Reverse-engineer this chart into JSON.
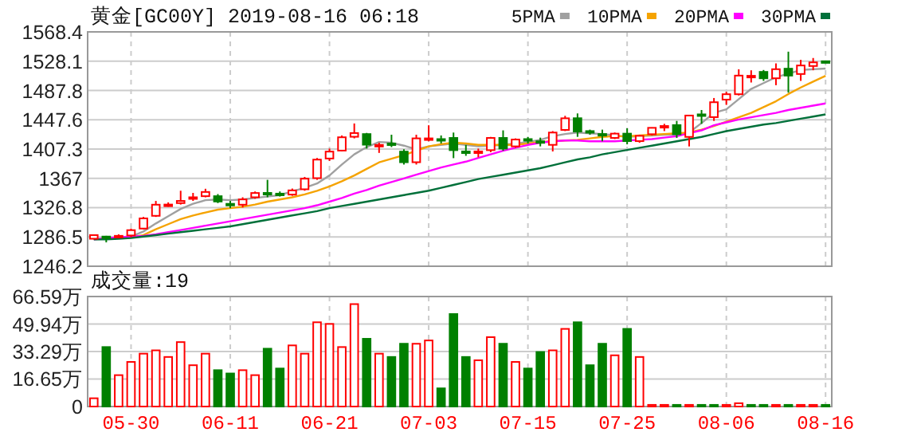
{
  "chart_data": [
    {
      "type": "candlestick",
      "title": "黄金[GC00Y] 2019-08-16 06:18",
      "categories": [
        null,
        null,
        null,
        null,
        null,
        null,
        null,
        null,
        null,
        null,
        null,
        null,
        null,
        null,
        null,
        null,
        null,
        null,
        null,
        null,
        null,
        null,
        null,
        null,
        null,
        null,
        null,
        null,
        null,
        null,
        null,
        null,
        null,
        null,
        null,
        null,
        null,
        null,
        null,
        null,
        null,
        null,
        null,
        null,
        null,
        null,
        null,
        null,
        null,
        null,
        null,
        null,
        null,
        null,
        null,
        null,
        null,
        null,
        null,
        null
      ],
      "ohlc": [
        [
          1284,
          1290,
          1283,
          1289
        ],
        [
          1287,
          1288,
          1279,
          1286
        ],
        [
          1286,
          1290,
          1285,
          1288
        ],
        [
          1288.5,
          1298,
          1286,
          1295.8
        ],
        [
          1298,
          1314,
          1297,
          1312
        ],
        [
          1315.5,
          1336,
          1314,
          1330.8
        ],
        [
          1329,
          1334,
          1328,
          1331
        ],
        [
          1333,
          1350,
          1331,
          1336
        ],
        [
          1339,
          1347,
          1336,
          1341
        ],
        [
          1342.5,
          1352.7,
          1341,
          1348.3
        ],
        [
          1342.5,
          1345.4,
          1333,
          1335.2
        ],
        [
          1332,
          1336,
          1326,
          1331
        ],
        [
          1330.8,
          1341,
          1327,
          1338.1
        ],
        [
          1341,
          1349,
          1339,
          1346.9
        ],
        [
          1347,
          1365,
          1341,
          1346
        ],
        [
          1346,
          1349,
          1342,
          1345
        ],
        [
          1344.7,
          1353,
          1343,
          1350.5
        ],
        [
          1352,
          1369,
          1350,
          1366.6
        ],
        [
          1367.3,
          1395,
          1365,
          1392.8
        ],
        [
          1394.3,
          1408,
          1391,
          1403.8
        ],
        [
          1405.2,
          1426,
          1404,
          1423.5
        ],
        [
          1424.2,
          1442.5,
          1422,
          1429.3
        ],
        [
          1427.9,
          1429.5,
          1408,
          1413.3
        ],
        [
          1411,
          1416,
          1402,
          1413
        ],
        [
          1415,
          1427,
          1410,
          1413
        ],
        [
          1403.8,
          1407,
          1386,
          1389.2
        ],
        [
          1389.2,
          1427,
          1386,
          1422
        ],
        [
          1421,
          1440,
          1418,
          1422
        ],
        [
          1421,
          1426,
          1415,
          1420
        ],
        [
          1422.6,
          1430,
          1394.8,
          1405.8
        ],
        [
          1404,
          1413,
          1398,
          1403
        ],
        [
          1402,
          1408,
          1396,
          1404
        ],
        [
          1405.8,
          1424,
          1403,
          1422.6
        ],
        [
          1422.6,
          1433,
          1405,
          1408
        ],
        [
          1411,
          1422,
          1409,
          1420.4
        ],
        [
          1421,
          1424,
          1415,
          1420
        ],
        [
          1418,
          1423,
          1411,
          1417
        ],
        [
          1413.1,
          1432,
          1404,
          1430
        ],
        [
          1433.6,
          1453,
          1432,
          1449.6
        ],
        [
          1449.7,
          1456.3,
          1424.1,
          1431.4
        ],
        [
          1432,
          1434,
          1427,
          1431
        ],
        [
          1428,
          1434,
          1418,
          1427
        ],
        [
          1422.6,
          1430,
          1421,
          1428.5
        ],
        [
          1428.5,
          1435.8,
          1413.8,
          1418.2
        ],
        [
          1418.2,
          1427,
          1416,
          1425.5
        ],
        [
          1427.7,
          1437,
          1426,
          1436.5
        ],
        [
          1437,
          1442,
          1432,
          1439
        ],
        [
          1440.2,
          1446,
          1422.6,
          1427.7
        ],
        [
          1424,
          1454,
          1410.9,
          1453.4
        ],
        [
          1455,
          1461,
          1442,
          1454
        ],
        [
          1451.2,
          1477.5,
          1446,
          1471.7
        ],
        [
          1475.3,
          1486,
          1468,
          1482.7
        ],
        [
          1482.7,
          1517,
          1481,
          1508.3
        ],
        [
          1506,
          1515.6,
          1498.8,
          1508
        ],
        [
          1513.4,
          1516,
          1501,
          1504.6
        ],
        [
          1504.6,
          1525.1,
          1495.1,
          1517.1
        ],
        [
          1517.8,
          1541.2,
          1484.9,
          1508.3
        ],
        [
          1510.5,
          1530,
          1501,
          1522.2
        ],
        [
          1521.5,
          1532.5,
          1515.6,
          1526.5
        ],
        [
          1528,
          1529,
          1526,
          1527
        ]
      ],
      "colors": [
        "#ff0000",
        "#008000",
        "#ff0000",
        "#ff0000",
        "#ff0000",
        "#ff0000",
        "#ff0000",
        "#ff0000",
        "#ff0000",
        "#ff0000",
        "#008000",
        "#008000",
        "#ff0000",
        "#ff0000",
        "#008000",
        "#008000",
        "#ff0000",
        "#ff0000",
        "#ff0000",
        "#ff0000",
        "#ff0000",
        "#ff0000",
        "#008000",
        "#ff0000",
        "#008000",
        "#008000",
        "#ff0000",
        "#ff0000",
        "#008000",
        "#008000",
        "#008000",
        "#ff0000",
        "#ff0000",
        "#008000",
        "#ff0000",
        "#008000",
        "#008000",
        "#ff0000",
        "#ff0000",
        "#008000",
        "#008000",
        "#008000",
        "#ff0000",
        "#008000",
        "#ff0000",
        "#ff0000",
        "#ff0000",
        "#008000",
        "#ff0000",
        "#008000",
        "#ff0000",
        "#ff0000",
        "#ff0000",
        "#ff0000",
        "#008000",
        "#ff0000",
        "#008000",
        "#ff0000",
        "#ff0000",
        "#008000"
      ],
      "series": [
        {
          "type": "line",
          "name": "5PMA",
          "color": "#a0a0a0",
          "values": [
            1283,
            1284,
            1286,
            1287,
            1294,
            1305,
            1315,
            1325,
            1332,
            1337,
            1338,
            1337,
            1338,
            1340,
            1342,
            1344,
            1349,
            1354,
            1360,
            1371,
            1386,
            1400,
            1410,
            1417,
            1416,
            1412,
            1407,
            1411,
            1413,
            1415,
            1413,
            1411,
            1412,
            1413,
            1415,
            1417,
            1420,
            1425,
            1428,
            1430,
            1429,
            1428,
            1426,
            1424,
            1425,
            1426,
            1427,
            1427,
            1430,
            1443,
            1457,
            1462,
            1476,
            1490,
            1498,
            1506,
            1511,
            1516,
            1517,
            1518
          ]
        },
        {
          "type": "line",
          "name": "10PMA",
          "color": "#f5a300",
          "values": [
            null,
            null,
            1285,
            1286,
            1289,
            1297,
            1304,
            1311,
            1316,
            1320,
            1324,
            1326,
            1328,
            1331,
            1335,
            1338,
            1341,
            1345,
            1350,
            1356,
            1363,
            1371,
            1380,
            1389,
            1394,
            1399,
            1405,
            1411,
            1414,
            1416,
            1415,
            1413,
            1413,
            1413,
            1413,
            1415,
            1417,
            1418,
            1419,
            1420,
            1422,
            1424,
            1425,
            1425,
            1426,
            1427,
            1428,
            1429,
            1430,
            1434,
            1439,
            1445,
            1451,
            1457,
            1465,
            1473,
            1483,
            1492,
            1500,
            1508
          ]
        },
        {
          "type": "line",
          "name": "20PMA",
          "color": "#ff00ff",
          "values": [
            1283,
            1285,
            1286,
            1287,
            1288,
            1290,
            1293,
            1296,
            1299,
            1302,
            1305,
            1308,
            1311,
            1314,
            1317,
            1320,
            1323,
            1326,
            1330,
            1335,
            1340,
            1346,
            1351,
            1357,
            1362,
            1367,
            1372,
            1377,
            1382,
            1386,
            1390,
            1395,
            1400,
            1405,
            1409,
            1413,
            1416,
            1418,
            1419,
            1419,
            1418,
            1418,
            1418,
            1419,
            1420,
            1421,
            1423,
            1425,
            1429,
            1433,
            1440,
            1444,
            1448,
            1451,
            1454,
            1457,
            1461,
            1464,
            1467,
            1470
          ]
        },
        {
          "type": "line",
          "name": "30PMA",
          "color": "#00703a",
          "values": [
            1283,
            1283,
            1284,
            1285,
            1287,
            1289,
            1291,
            1293,
            1295,
            1297,
            1299,
            1301,
            1304,
            1307,
            1310,
            1313,
            1316,
            1319,
            1322,
            1326,
            1329,
            1332,
            1335,
            1338,
            1341,
            1344,
            1347,
            1350,
            1354,
            1358,
            1362,
            1366,
            1369,
            1372,
            1375,
            1378,
            1381,
            1385,
            1389,
            1393,
            1396,
            1400,
            1403,
            1406,
            1409,
            1412,
            1415,
            1418,
            1421,
            1424,
            1428,
            1432,
            1435,
            1438,
            1441,
            1443,
            1446,
            1449,
            1452,
            1455
          ]
        }
      ],
      "ylim": [
        1246.2,
        1568.4
      ],
      "yticks": [
        1246.2,
        1286.5,
        1326.8,
        1367.0,
        1407.3,
        1447.6,
        1487.8,
        1528.1,
        1568.4
      ],
      "grid": true,
      "legend": "top right",
      "tick_labels": "y"
    },
    {
      "type": "bar",
      "title": "成交量:19",
      "categories": [
        null,
        null,
        null,
        "05-30",
        null,
        null,
        null,
        null,
        null,
        null,
        null,
        "06-11",
        null,
        null,
        null,
        null,
        null,
        null,
        null,
        "06-21",
        null,
        null,
        null,
        null,
        null,
        null,
        null,
        "07-03",
        null,
        null,
        null,
        null,
        null,
        null,
        null,
        "07-15",
        null,
        null,
        null,
        null,
        null,
        null,
        null,
        "07-25",
        null,
        null,
        null,
        null,
        null,
        null,
        null,
        "08-06",
        null,
        null,
        null,
        null,
        null,
        null,
        null,
        "08-16"
      ],
      "values": [
        5,
        36,
        19,
        27,
        32,
        34,
        30,
        39,
        25,
        32,
        22,
        20,
        22,
        19,
        35,
        23,
        37,
        32,
        51,
        50,
        36,
        62,
        41,
        32,
        30,
        38,
        38,
        40,
        11,
        56,
        30,
        28,
        42,
        38,
        27,
        23,
        33,
        34,
        47,
        51,
        25,
        38,
        31,
        47,
        30,
        1,
        1,
        1,
        1,
        1,
        1,
        1,
        2,
        1,
        1,
        1,
        1,
        1,
        1,
        1
      ],
      "colors": [
        "#ff0000",
        "#008000",
        "#ff0000",
        "#ff0000",
        "#ff0000",
        "#ff0000",
        "#ff0000",
        "#ff0000",
        "#ff0000",
        "#ff0000",
        "#008000",
        "#008000",
        "#ff0000",
        "#ff0000",
        "#008000",
        "#008000",
        "#ff0000",
        "#ff0000",
        "#ff0000",
        "#ff0000",
        "#ff0000",
        "#ff0000",
        "#008000",
        "#ff0000",
        "#008000",
        "#008000",
        "#ff0000",
        "#ff0000",
        "#008000",
        "#008000",
        "#008000",
        "#ff0000",
        "#ff0000",
        "#008000",
        "#ff0000",
        "#008000",
        "#008000",
        "#ff0000",
        "#ff0000",
        "#008000",
        "#008000",
        "#008000",
        "#ff0000",
        "#008000",
        "#ff0000",
        "#ff0000",
        "#ff0000",
        "#008000",
        "#ff0000",
        "#008000",
        "#008000",
        "#ff0000",
        "#ff0000",
        "#008000",
        "#008000",
        "#ff0000",
        "#008000",
        "#ff0000",
        "#ff0000",
        "#008000"
      ],
      "ylim": [
        0,
        66.59
      ],
      "yticks": [
        0,
        {
          "value": 16.65,
          "label": "16.65万"
        },
        {
          "value": 33.29,
          "label": "33.29万"
        },
        {
          "value": 49.94,
          "label": "49.94万"
        },
        {
          "value": 66.59,
          "label": "66.59万"
        }
      ],
      "grid": true
    }
  ]
}
